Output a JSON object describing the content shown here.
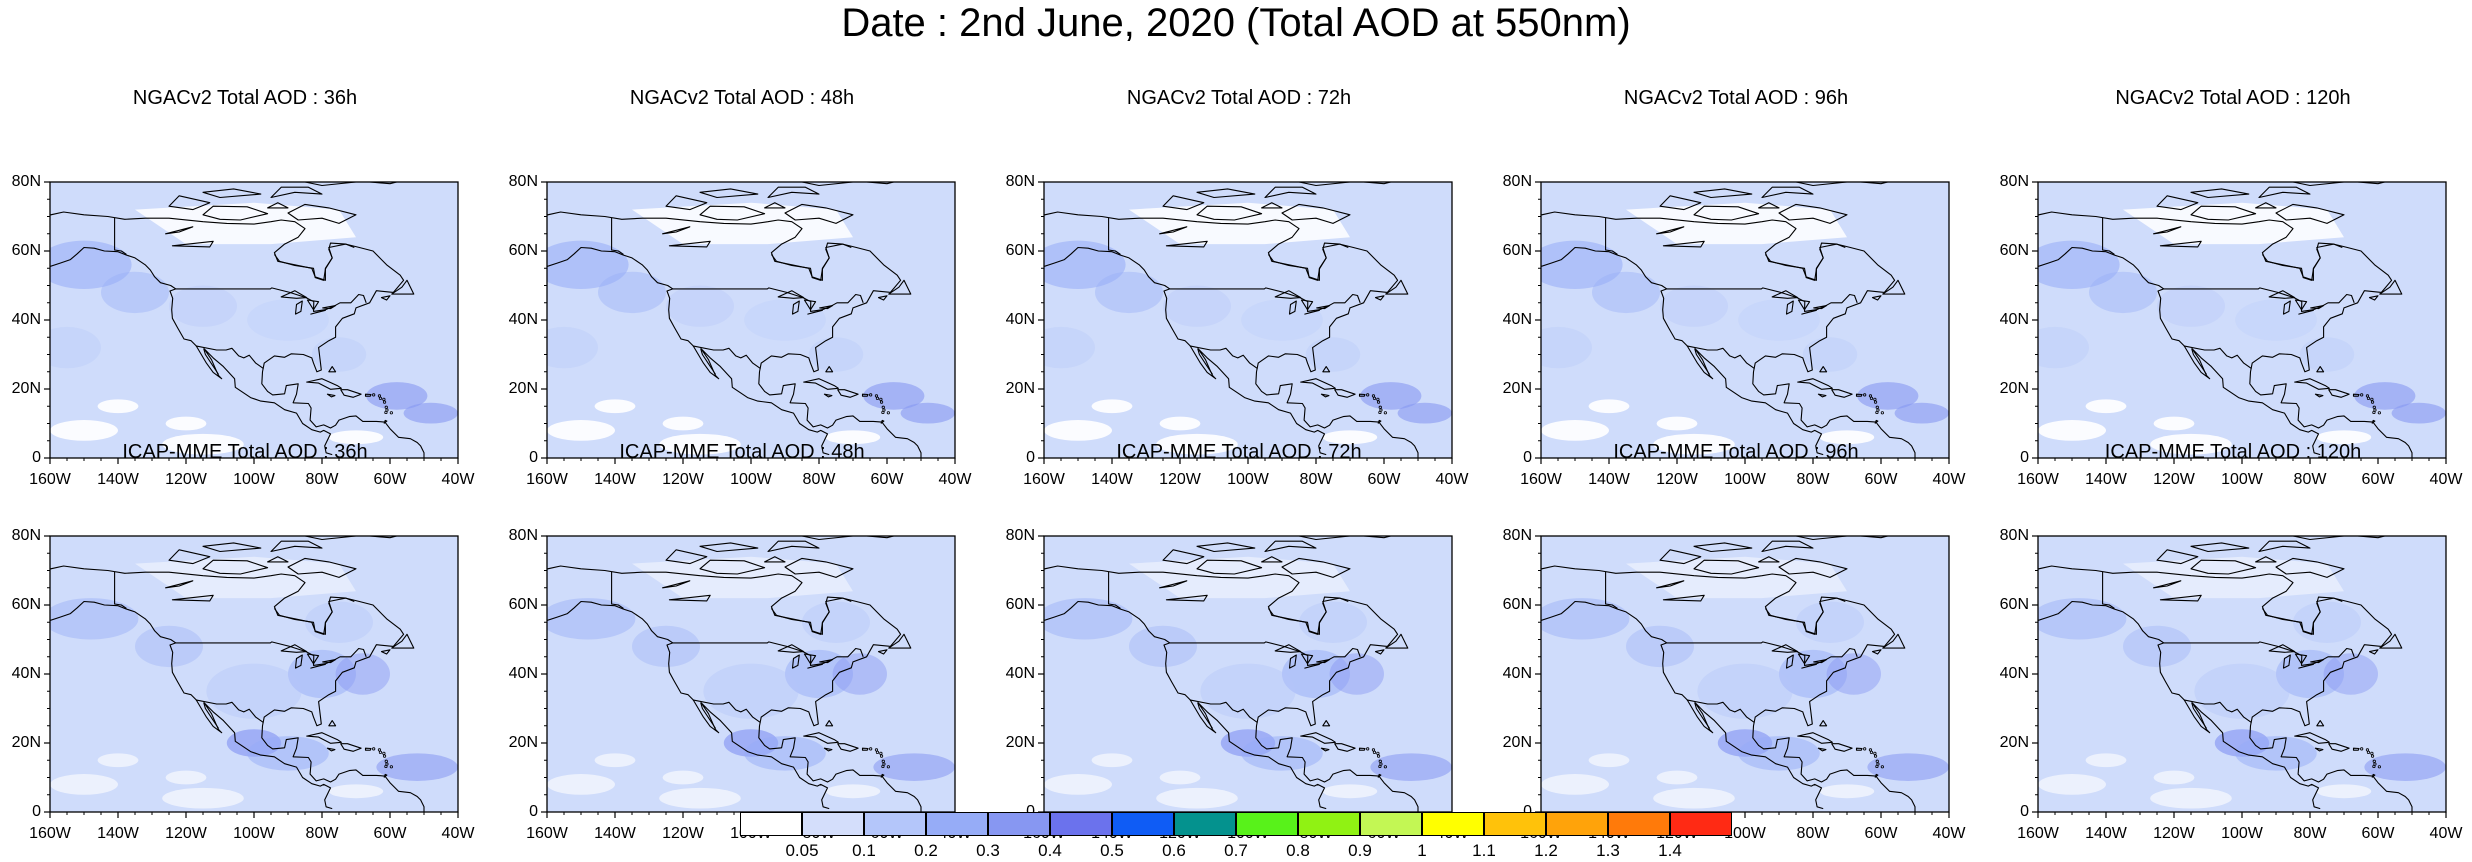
{
  "title": "Date : 2nd June, 2020 (Total AOD at 550nm)",
  "axes": {
    "lat_ticks": [
      "80N",
      "60N",
      "40N",
      "20N",
      "0"
    ],
    "lon_ticks": [
      "160W",
      "140W",
      "120W",
      "100W",
      "80W",
      "60W",
      "40W"
    ]
  },
  "colors": {
    "ocean_base": "#cfdcfb",
    "land_base": "#ffffff",
    "coast": "#000000"
  },
  "panels": [
    {
      "title": "NGACv2 Total AOD : 36h",
      "model": "NGACv2",
      "lead_hours": 36
    },
    {
      "title": "NGACv2 Total AOD : 48h",
      "model": "NGACv2",
      "lead_hours": 48
    },
    {
      "title": "NGACv2 Total AOD : 72h",
      "model": "NGACv2",
      "lead_hours": 72
    },
    {
      "title": "NGACv2 Total AOD : 96h",
      "model": "NGACv2",
      "lead_hours": 96
    },
    {
      "title": "NGACv2 Total AOD : 120h",
      "model": "NGACv2",
      "lead_hours": 120
    },
    {
      "title": "ICAP-MME Total AOD : 36h",
      "model": "ICAP-MME",
      "lead_hours": 36
    },
    {
      "title": "ICAP-MME Total AOD : 48h",
      "model": "ICAP-MME",
      "lead_hours": 48
    },
    {
      "title": "ICAP-MME Total AOD : 72h",
      "model": "ICAP-MME",
      "lead_hours": 72
    },
    {
      "title": "ICAP-MME Total AOD : 96h",
      "model": "ICAP-MME",
      "lead_hours": 96
    },
    {
      "title": "ICAP-MME Total AOD : 120h",
      "model": "ICAP-MME",
      "lead_hours": 120
    }
  ],
  "colorbar": {
    "labels": [
      "0.05",
      "0.1",
      "0.2",
      "0.3",
      "0.4",
      "0.5",
      "0.6",
      "0.7",
      "0.8",
      "0.9",
      "1",
      "1.1",
      "1.2",
      "1.3",
      "1.4"
    ],
    "colors": [
      "#ffffff",
      "#d4defb",
      "#b4c6fa",
      "#96acf7",
      "#8797f2",
      "#6b72ed",
      "#0f5cf5",
      "#04928e",
      "#58f21a",
      "#90f213",
      "#c3f754",
      "#ffff00",
      "#ffc20a",
      "#ffa30a",
      "#ff7a0a",
      "#ff2a14"
    ]
  }
}
